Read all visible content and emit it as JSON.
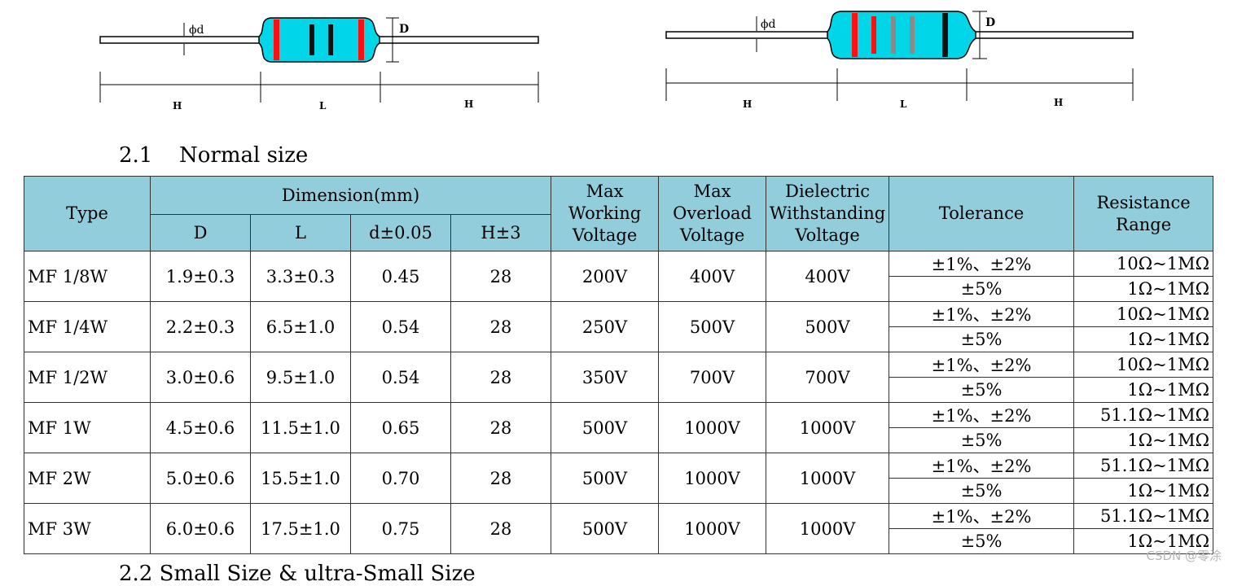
{
  "diagrams": {
    "left": {
      "labels": {
        "lead_dia": "ϕd",
        "body_dia": "D",
        "lead_len_left": "H",
        "body_len": "L",
        "lead_len_right": "H"
      }
    },
    "right": {
      "labels": {
        "lead_dia": "ϕd",
        "body_dia": "D",
        "lead_len_left": "H",
        "body_len": "L",
        "lead_len_right": "H"
      }
    },
    "colors": {
      "body": "#00D6E8",
      "band_red": "#FF1010",
      "band_black": "#111111",
      "band_gray": "#8A8A8A"
    }
  },
  "section": {
    "number": "2.1",
    "title": "Normal size"
  },
  "table": {
    "header": {
      "type": "Type",
      "dimension": "Dimension(mm)",
      "dim_cols": [
        "D",
        "L",
        "d±0.05",
        "H±3"
      ],
      "max_working": [
        "Max",
        "Working",
        "Voltage"
      ],
      "max_overload": [
        "Max",
        "Overload",
        "Voltage"
      ],
      "dielectric": [
        "Dielectric",
        "Withstanding",
        "Voltage"
      ],
      "tolerance": "Tolerance",
      "resistance": [
        "Resistance",
        "Range"
      ]
    },
    "rows": [
      {
        "type": "MF 1/8W",
        "D": "1.9±0.3",
        "L": "3.3±0.3",
        "d": "0.45",
        "H": "28",
        "working": "200V",
        "overload": "400V",
        "dielectric": "400V",
        "tol1": "±1%、±2%",
        "range1": "10Ω~1MΩ",
        "tol2": "±5%",
        "range2": "1Ω~1MΩ"
      },
      {
        "type": "MF 1/4W",
        "D": "2.2±0.3",
        "L": "6.5±1.0",
        "d": "0.54",
        "H": "28",
        "working": "250V",
        "overload": "500V",
        "dielectric": "500V",
        "tol1": "±1%、±2%",
        "range1": "10Ω~1MΩ",
        "tol2": "±5%",
        "range2": "1Ω~1MΩ"
      },
      {
        "type": "MF 1/2W",
        "D": "3.0±0.6",
        "L": "9.5±1.0",
        "d": "0.54",
        "H": "28",
        "working": "350V",
        "overload": "700V",
        "dielectric": "700V",
        "tol1": "±1%、±2%",
        "range1": "10Ω~1MΩ",
        "tol2": "±5%",
        "range2": "1Ω~1MΩ"
      },
      {
        "type": "MF 1W",
        "D": "4.5±0.6",
        "L": "11.5±1.0",
        "d": "0.65",
        "H": "28",
        "working": "500V",
        "overload": "1000V",
        "dielectric": "1000V",
        "tol1": "±1%、±2%",
        "range1": "51.1Ω~1MΩ",
        "tol2": "±5%",
        "range2": "1Ω~1MΩ"
      },
      {
        "type": "MF 2W",
        "D": "5.0±0.6",
        "L": "15.5±1.0",
        "d": "0.70",
        "H": "28",
        "working": "500V",
        "overload": "1000V",
        "dielectric": "1000V",
        "tol1": "±1%、±2%",
        "range1": "51.1Ω~1MΩ",
        "tol2": "±5%",
        "range2": "1Ω~1MΩ"
      },
      {
        "type": "MF 3W",
        "D": "6.0±0.6",
        "L": "17.5±1.0",
        "d": "0.75",
        "H": "28",
        "working": "500V",
        "overload": "1000V",
        "dielectric": "1000V",
        "tol1": "±1%、±2%",
        "range1": "51.1Ω~1MΩ",
        "tol2": "±5%",
        "range2": "1Ω~1MΩ"
      }
    ]
  },
  "next_section_partial": "2.2   Small Size & ultra-Small Size",
  "watermark": "CSDN @零涂"
}
